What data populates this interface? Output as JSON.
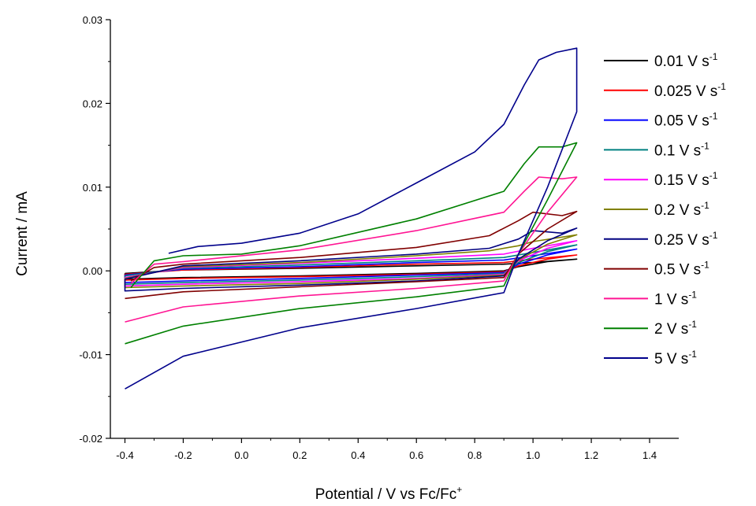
{
  "chart_data": {
    "type": "line",
    "title": "",
    "xlabel": "Potential / V vs Fc/Fc",
    "xlabel_sup": "+",
    "ylabel": "Current / mA",
    "xlim": [
      -0.45,
      1.5
    ],
    "ylim": [
      -0.02,
      0.03
    ],
    "x_ticks": [
      -0.4,
      -0.2,
      0.0,
      0.2,
      0.4,
      0.6,
      0.8,
      1.0,
      1.2,
      1.4
    ],
    "x_tick_labels": [
      "-0.4",
      "-0.2",
      "0.0",
      "0.2",
      "0.4",
      "0.6",
      "0.8",
      "1.0",
      "1.2",
      "1.4"
    ],
    "y_ticks": [
      -0.02,
      -0.01,
      0.0,
      0.01,
      0.02,
      0.03
    ],
    "y_tick_labels": [
      "-0.02",
      "-0.01",
      "0.00",
      "0.01",
      "0.02",
      "0.03"
    ],
    "grid": false,
    "legend_position": "right",
    "series": [
      {
        "name": "0.01 V s",
        "sup": "-1",
        "color": "#000000",
        "points": [
          [
            -0.4,
            -0.0003
          ],
          [
            -0.2,
            0.0001
          ],
          [
            0.2,
            0.0003
          ],
          [
            0.6,
            0.0006
          ],
          [
            0.9,
            0.0008
          ],
          [
            1.0,
            0.001
          ],
          [
            1.15,
            0.0014
          ],
          [
            1.05,
            0.0011
          ],
          [
            0.95,
            0.0005
          ],
          [
            0.9,
            0.0
          ],
          [
            0.6,
            -0.0003
          ],
          [
            0.2,
            -0.0006
          ],
          [
            -0.2,
            -0.0008
          ],
          [
            -0.4,
            -0.001
          ],
          [
            -0.4,
            -0.0003
          ]
        ]
      },
      {
        "name": "0.025 V s",
        "sup": "-1",
        "color": "#ff0000",
        "points": [
          [
            -0.4,
            -0.0004
          ],
          [
            -0.2,
            0.0001
          ],
          [
            0.2,
            0.0004
          ],
          [
            0.6,
            0.0008
          ],
          [
            0.9,
            0.001
          ],
          [
            1.0,
            0.0014
          ],
          [
            1.15,
            0.0019
          ],
          [
            1.05,
            0.0014
          ],
          [
            0.95,
            0.0006
          ],
          [
            0.9,
            -0.0001
          ],
          [
            0.6,
            -0.0004
          ],
          [
            0.2,
            -0.0007
          ],
          [
            -0.2,
            -0.0009
          ],
          [
            -0.4,
            -0.0011
          ],
          [
            -0.4,
            -0.0004
          ]
        ]
      },
      {
        "name": "0.05 V s",
        "sup": "-1",
        "color": "#0000ff",
        "points": [
          [
            -0.4,
            -0.0005
          ],
          [
            -0.2,
            0.0002
          ],
          [
            0.2,
            0.0005
          ],
          [
            0.6,
            0.001
          ],
          [
            0.9,
            0.0013
          ],
          [
            1.0,
            0.0018
          ],
          [
            1.15,
            0.0026
          ],
          [
            1.05,
            0.0019
          ],
          [
            0.95,
            0.0008
          ],
          [
            0.9,
            -0.0002
          ],
          [
            0.6,
            -0.0005
          ],
          [
            0.2,
            -0.0009
          ],
          [
            -0.2,
            -0.0012
          ],
          [
            -0.4,
            -0.0014
          ],
          [
            -0.4,
            -0.0005
          ]
        ]
      },
      {
        "name": "0.1 V s",
        "sup": "-1",
        "color": "#008080",
        "points": [
          [
            -0.4,
            -0.0006
          ],
          [
            -0.2,
            0.0003
          ],
          [
            0.2,
            0.0007
          ],
          [
            0.6,
            0.0012
          ],
          [
            0.9,
            0.0016
          ],
          [
            1.0,
            0.0022
          ],
          [
            1.15,
            0.0031
          ],
          [
            1.05,
            0.0023
          ],
          [
            0.95,
            0.001
          ],
          [
            0.9,
            -0.0003
          ],
          [
            0.6,
            -0.0007
          ],
          [
            0.2,
            -0.0011
          ],
          [
            -0.2,
            -0.0014
          ],
          [
            -0.4,
            -0.0016
          ],
          [
            -0.4,
            -0.0006
          ]
        ]
      },
      {
        "name": "0.15 V s",
        "sup": "-1",
        "color": "#ff00ff",
        "points": [
          [
            -0.4,
            -0.0008
          ],
          [
            -0.2,
            0.0004
          ],
          [
            0.2,
            0.0009
          ],
          [
            0.6,
            0.0015
          ],
          [
            0.9,
            0.002
          ],
          [
            1.0,
            0.0027
          ],
          [
            1.15,
            0.0036
          ],
          [
            1.05,
            0.0027
          ],
          [
            0.95,
            0.0012
          ],
          [
            0.9,
            -0.0004
          ],
          [
            0.6,
            -0.0009
          ],
          [
            0.2,
            -0.0013
          ],
          [
            -0.2,
            -0.0016
          ],
          [
            -0.4,
            -0.0018
          ],
          [
            -0.4,
            -0.0008
          ]
        ]
      },
      {
        "name": "0.2 V s",
        "sup": "-1",
        "color": "#808000",
        "points": [
          [
            -0.4,
            -0.0009
          ],
          [
            -0.2,
            0.0005
          ],
          [
            0.2,
            0.001
          ],
          [
            0.6,
            0.0018
          ],
          [
            0.85,
            0.0024
          ],
          [
            0.95,
            0.003
          ],
          [
            1.0,
            0.0035
          ],
          [
            1.15,
            0.0043
          ],
          [
            1.05,
            0.0032
          ],
          [
            0.95,
            0.0013
          ],
          [
            0.9,
            -0.0005
          ],
          [
            0.6,
            -0.001
          ],
          [
            0.2,
            -0.0015
          ],
          [
            -0.2,
            -0.0018
          ],
          [
            -0.4,
            -0.002
          ],
          [
            -0.4,
            -0.0009
          ]
        ]
      },
      {
        "name": "0.25 V s",
        "sup": "-1",
        "color": "#000080",
        "points": [
          [
            -0.4,
            -0.001
          ],
          [
            -0.2,
            0.0006
          ],
          [
            0.2,
            0.0012
          ],
          [
            0.6,
            0.002
          ],
          [
            0.85,
            0.0027
          ],
          [
            0.95,
            0.0038
          ],
          [
            1.0,
            0.0048
          ],
          [
            1.1,
            0.0045
          ],
          [
            1.15,
            0.0051
          ],
          [
            1.05,
            0.0036
          ],
          [
            0.95,
            0.0014
          ],
          [
            0.9,
            -0.0006
          ],
          [
            0.6,
            -0.0012
          ],
          [
            0.2,
            -0.0017
          ],
          [
            -0.2,
            -0.0021
          ],
          [
            -0.4,
            -0.0024
          ],
          [
            -0.4,
            -0.001
          ]
        ]
      },
      {
        "name": "0.5 V s",
        "sup": "-1",
        "color": "#800000",
        "points": [
          [
            -0.38,
            -0.0012
          ],
          [
            -0.3,
            0.0004
          ],
          [
            -0.2,
            0.0008
          ],
          [
            0.2,
            0.0016
          ],
          [
            0.6,
            0.0028
          ],
          [
            0.85,
            0.0042
          ],
          [
            0.95,
            0.006
          ],
          [
            1.0,
            0.007
          ],
          [
            1.1,
            0.0066
          ],
          [
            1.15,
            0.0071
          ],
          [
            1.05,
            0.005
          ],
          [
            0.95,
            0.002
          ],
          [
            0.9,
            -0.0008
          ],
          [
            0.6,
            -0.0013
          ],
          [
            0.2,
            -0.0019
          ],
          [
            -0.2,
            -0.0025
          ],
          [
            -0.4,
            -0.0033
          ]
        ]
      },
      {
        "name": "1 V s",
        "sup": "-1",
        "color": "#ff1493",
        "points": [
          [
            -0.38,
            -0.0015
          ],
          [
            -0.3,
            0.0008
          ],
          [
            -0.2,
            0.0011
          ],
          [
            0.2,
            0.0025
          ],
          [
            0.6,
            0.0048
          ],
          [
            0.9,
            0.007
          ],
          [
            0.97,
            0.0095
          ],
          [
            1.02,
            0.0112
          ],
          [
            1.1,
            0.011
          ],
          [
            1.15,
            0.0112
          ],
          [
            1.05,
            0.007
          ],
          [
            0.95,
            0.002
          ],
          [
            0.9,
            -0.0012
          ],
          [
            0.6,
            -0.0021
          ],
          [
            0.2,
            -0.003
          ],
          [
            -0.2,
            -0.0043
          ],
          [
            -0.4,
            -0.0061
          ]
        ]
      },
      {
        "name": "2 V s",
        "sup": "-1",
        "color": "#008000",
        "points": [
          [
            -0.38,
            -0.002
          ],
          [
            -0.3,
            0.0012
          ],
          [
            -0.2,
            0.0018
          ],
          [
            0.0,
            0.002
          ],
          [
            0.2,
            0.003
          ],
          [
            0.6,
            0.0062
          ],
          [
            0.9,
            0.0095
          ],
          [
            0.97,
            0.0128
          ],
          [
            1.02,
            0.0148
          ],
          [
            1.1,
            0.0148
          ],
          [
            1.15,
            0.0153
          ],
          [
            1.05,
            0.0085
          ],
          [
            0.95,
            0.002
          ],
          [
            0.9,
            -0.0018
          ],
          [
            0.6,
            -0.0031
          ],
          [
            0.2,
            -0.0045
          ],
          [
            -0.2,
            -0.0066
          ],
          [
            -0.4,
            -0.0087
          ]
        ]
      },
      {
        "name": "5 V s",
        "sup": "-1",
        "color": "#00008b",
        "points": [
          [
            -0.25,
            0.0021
          ],
          [
            -0.15,
            0.0029
          ],
          [
            0.0,
            0.0033
          ],
          [
            0.2,
            0.0045
          ],
          [
            0.4,
            0.0068
          ],
          [
            0.6,
            0.0105
          ],
          [
            0.8,
            0.0142
          ],
          [
            0.9,
            0.0175
          ],
          [
            0.97,
            0.0222
          ],
          [
            1.02,
            0.0252
          ],
          [
            1.08,
            0.0261
          ],
          [
            1.15,
            0.0266
          ],
          [
            1.15,
            0.019
          ],
          [
            1.05,
            0.01
          ],
          [
            0.95,
            0.002
          ],
          [
            0.9,
            -0.0026
          ],
          [
            0.6,
            -0.0045
          ],
          [
            0.2,
            -0.0068
          ],
          [
            -0.2,
            -0.0102
          ],
          [
            -0.4,
            -0.0141
          ]
        ]
      }
    ]
  }
}
